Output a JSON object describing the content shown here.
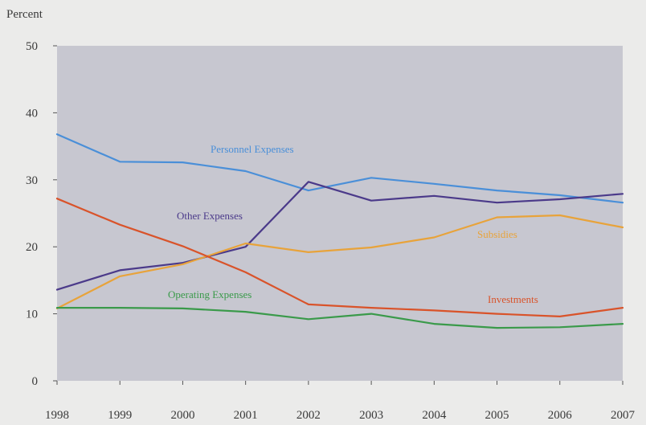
{
  "chart_data": {
    "type": "line",
    "ylabel": "Percent",
    "ylim": [
      0,
      50
    ],
    "xlim": [
      1998,
      2007
    ],
    "y_ticks": [
      0,
      10,
      20,
      30,
      40,
      50
    ],
    "x": [
      1998,
      1999,
      2000,
      2001,
      2002,
      2003,
      2004,
      2005,
      2006,
      2007
    ],
    "grid": false,
    "legend": "inline labels",
    "series": [
      {
        "name": "Personnel Expenses",
        "color": "#4a8fd8",
        "values": [
          36.8,
          32.7,
          32.6,
          31.3,
          28.4,
          30.3,
          29.4,
          28.4,
          27.7,
          26.6
        ]
      },
      {
        "name": "Other Expenses",
        "color": "#4b3a8a",
        "values": [
          13.6,
          16.5,
          17.6,
          20.0,
          29.7,
          26.9,
          27.6,
          26.6,
          27.1,
          27.9
        ]
      },
      {
        "name": "Subsidies",
        "color": "#e8a33a",
        "values": [
          10.8,
          15.6,
          17.4,
          20.5,
          19.2,
          19.9,
          21.4,
          24.4,
          24.7,
          22.9
        ]
      },
      {
        "name": "Investments",
        "color": "#d9532a",
        "values": [
          27.2,
          23.3,
          20.1,
          16.2,
          11.4,
          10.9,
          10.5,
          10.0,
          9.6,
          10.9
        ]
      },
      {
        "name": "Operating Expenses",
        "color": "#3a9a4a",
        "values": [
          10.9,
          10.9,
          10.8,
          10.3,
          9.2,
          10.0,
          8.5,
          7.9,
          8.0,
          8.5
        ]
      }
    ]
  }
}
